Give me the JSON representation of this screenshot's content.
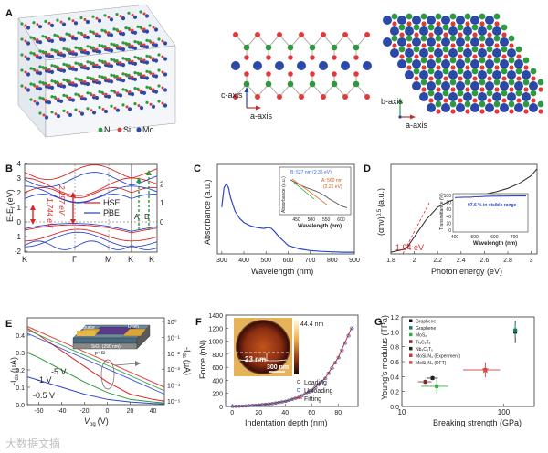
{
  "panels": {
    "a": {
      "label": "A",
      "legend": [
        "N",
        "Si",
        "Mo"
      ],
      "colors": {
        "N": "#2e9a3e",
        "Si": "#e03b3b",
        "Mo": "#2d49a7"
      },
      "axes": [
        {
          "primary": "c-axis",
          "secondary": "a-axis"
        },
        {
          "primary": "b-axis",
          "secondary": "a-axis"
        }
      ]
    },
    "b": {
      "label": "B",
      "ylabel": "E-E",
      "ylabel_sub": "f",
      "ylabel_unit": "(eV)",
      "yticks": [
        "4",
        "3",
        "2",
        "1",
        "0",
        "-1",
        "-2"
      ],
      "yticks_right": [
        "2",
        "1",
        "0"
      ],
      "xticks": [
        "K",
        "Γ",
        "M",
        "K",
        "K"
      ],
      "legend": [
        {
          "name": "HSE",
          "color": "#d92626"
        },
        {
          "name": "PBE",
          "color": "#2b47c9"
        }
      ],
      "gaps": [
        "1.744 eV",
        "2.297 eV"
      ],
      "ab": [
        "A",
        "B"
      ]
    },
    "c": {
      "label": "C",
      "ylabel": "Absorbance (a.u.)",
      "xlabel": "Wavelength (nm)",
      "xticks": [
        "300",
        "400",
        "500",
        "600",
        "700",
        "800",
        "900"
      ],
      "inset": {
        "ylabel": "Absorbance (a.u.)",
        "xlabel": "Wavelength (nm)",
        "xticks": [
          "450",
          "500",
          "550",
          "600"
        ],
        "note_b": "B: 527 nm (2.35 eV)",
        "note_a1": "A: 560 nm",
        "note_a2": "(2.21 eV)"
      }
    },
    "d": {
      "label": "D",
      "ylabel": "(αhν)",
      "ylabel_exp": "0.5",
      "ylabel_unit": "(a.u.)",
      "xlabel": "Photon energy (eV)",
      "xticks": [
        "1.8",
        "2",
        "2.2",
        "2.4",
        "2.6",
        "2.8",
        "3"
      ],
      "gap": "1.94 eV",
      "inset": {
        "ylabel": "Transmittance (%)",
        "xlabel": "Wavelength (nm)",
        "yticks": [
          "100",
          "80",
          "60",
          "40",
          "20",
          "0"
        ],
        "xticks": [
          "400",
          "500",
          "600",
          "700"
        ],
        "note": "97.6 % in visible range"
      }
    },
    "e": {
      "label": "E",
      "ylabel_left": "-I",
      "ylabel_left_sub": "ds",
      "ylabel_left_unit": "(μA)",
      "ylabel_right": "-I",
      "ylabel_right_sub": "ds",
      "ylabel_right_unit": "(μA)",
      "xlabel": "V",
      "xlabel_sub": "bg",
      "xlabel_unit": "(V)",
      "yticks_left": [
        "0.4",
        "0.3",
        "0.2",
        "0.1",
        "0.0"
      ],
      "yticks_right": [
        "10⁰",
        "10⁻¹",
        "10⁻²",
        "10⁻³",
        "10⁻⁴",
        "10⁻⁵"
      ],
      "xticks": [
        "-60",
        "-40",
        "-20",
        "0",
        "20",
        "40"
      ],
      "curve_labels": [
        "-5 V",
        "-1 V",
        "-0.5 V"
      ],
      "device": {
        "source": "Source",
        "drain": "Drain",
        "layer1": "SiO₂ (290 nm)",
        "layer2": "p⁺ Si"
      }
    },
    "f": {
      "label": "F",
      "ylabel": "Force (nN)",
      "xlabel": "Indentation depth (nm)",
      "yticks": [
        "1400",
        "1200",
        "1000",
        "800",
        "600",
        "400",
        "200",
        "0"
      ],
      "xticks": [
        "0",
        "20",
        "40",
        "60",
        "80"
      ],
      "legend": [
        "Loading",
        "Unloading",
        "Fitting"
      ],
      "inset": {
        "height": "44.4 nm",
        "thickness": "23 nm",
        "scale": "300 nm"
      }
    },
    "g": {
      "label": "G",
      "ylabel": "Young's modulus (TPa)",
      "xlabel": "Breaking strength (GPa)",
      "yticks": [
        "1.2",
        "1.0",
        "0.8",
        "0.6",
        "0.4",
        "0.2",
        "0.0"
      ],
      "xticks": [
        "10",
        "100"
      ],
      "legend": [
        {
          "name": "Graphene",
          "color": "#111111"
        },
        {
          "name": "Graphene",
          "color": "#1c7a5c"
        },
        {
          "name": "MoS₂",
          "color": "#3aa84a"
        },
        {
          "name": "Ti₃C₂Tₓ",
          "color": "#7a2a2a"
        },
        {
          "name": "Nb₄C₃Tₓ",
          "color": "#222222"
        },
        {
          "name": "MoSi₂N₄ (Experiment)",
          "color": "#c03a3a"
        },
        {
          "name": "MoSi₂N₄ (DFT)",
          "color": "#d9534f"
        }
      ]
    }
  },
  "watermark": "大数据文摘",
  "chart_data": [
    {
      "type": "line",
      "title": "C",
      "xlabel": "Wavelength (nm)",
      "ylabel": "Absorbance (a.u.)",
      "xlim": [
        280,
        900
      ],
      "ylim": [
        0,
        1
      ],
      "series": [
        {
          "name": "absorbance",
          "x": [
            300,
            310,
            320,
            330,
            340,
            360,
            380,
            400,
            430,
            460,
            490,
            510,
            525,
            540,
            560,
            580,
            600,
            650,
            700,
            750,
            800,
            850,
            900
          ],
          "y": [
            0.55,
            0.78,
            0.82,
            0.78,
            0.66,
            0.5,
            0.42,
            0.37,
            0.33,
            0.31,
            0.3,
            0.31,
            0.3,
            0.26,
            0.2,
            0.15,
            0.1,
            0.06,
            0.04,
            0.03,
            0.025,
            0.02,
            0.02
          ]
        }
      ]
    },
    {
      "type": "line",
      "title": "D",
      "xlabel": "Photon energy (eV)",
      "ylabel": "(αhν)^0.5 (a.u.)",
      "xlim": [
        1.8,
        3.05
      ],
      "ylim": [
        0,
        1
      ],
      "series": [
        {
          "name": "tauc",
          "x": [
            1.8,
            1.9,
            1.94,
            2.0,
            2.1,
            2.2,
            2.3,
            2.4,
            2.5,
            2.6,
            2.7,
            2.8,
            2.9,
            3.0,
            3.05
          ],
          "y": [
            0.02,
            0.05,
            0.08,
            0.2,
            0.4,
            0.55,
            0.62,
            0.66,
            0.68,
            0.7,
            0.73,
            0.77,
            0.83,
            0.92,
            1.0
          ]
        }
      ]
    },
    {
      "type": "line",
      "title": "D inset",
      "xlabel": "Wavelength (nm)",
      "ylabel": "Transmittance (%)",
      "xlim": [
        400,
        760
      ],
      "ylim": [
        0,
        100
      ],
      "series": [
        {
          "name": "transmittance",
          "x": [
            400,
            450,
            480,
            500,
            530,
            560,
            600,
            700,
            760
          ],
          "y": [
            94,
            95,
            95,
            96,
            96.5,
            97.5,
            98,
            98.5,
            98.5
          ]
        }
      ]
    },
    {
      "type": "line",
      "title": "E",
      "xlabel": "Vbg (V)",
      "ylabel": "-Ids (μA)",
      "xlim": [
        -70,
        50
      ],
      "ylim": [
        0,
        0.5
      ],
      "series": [
        {
          "name": "-5 V",
          "x": [
            -70,
            -60,
            -40,
            -20,
            0,
            20,
            40,
            50
          ],
          "y": [
            0.44,
            0.4,
            0.31,
            0.22,
            0.13,
            0.06,
            0.03,
            0.02
          ]
        },
        {
          "name": "-1 V",
          "x": [
            -70,
            -60,
            -40,
            -20,
            0,
            20,
            40,
            50
          ],
          "y": [
            0.3,
            0.27,
            0.2,
            0.13,
            0.07,
            0.03,
            0.015,
            0.01
          ]
        },
        {
          "name": "-0.5 V",
          "x": [
            -70,
            -60,
            -40,
            -20,
            0,
            20,
            40,
            50
          ],
          "y": [
            0.16,
            0.14,
            0.1,
            0.06,
            0.03,
            0.015,
            0.007,
            0.005
          ]
        }
      ]
    },
    {
      "type": "line",
      "title": "F",
      "xlabel": "Indentation depth (nm)",
      "ylabel": "Force (nN)",
      "xlim": [
        -5,
        95
      ],
      "ylim": [
        0,
        1400
      ],
      "series": [
        {
          "name": "Loading",
          "x": [
            0,
            10,
            20,
            30,
            40,
            50,
            60,
            70,
            80,
            90
          ],
          "y": [
            0,
            10,
            25,
            45,
            80,
            140,
            250,
            430,
            750,
            1200
          ]
        },
        {
          "name": "Unloading",
          "x": [
            0,
            10,
            20,
            30,
            40,
            50,
            60,
            70,
            80,
            90
          ],
          "y": [
            0,
            8,
            22,
            42,
            78,
            138,
            245,
            425,
            745,
            1190
          ]
        },
        {
          "name": "Fitting",
          "x": [
            0,
            10,
            20,
            30,
            40,
            50,
            60,
            70,
            80,
            90
          ],
          "y": [
            0,
            9,
            23,
            44,
            79,
            139,
            248,
            428,
            748,
            1200
          ]
        }
      ]
    },
    {
      "type": "scatter",
      "title": "G",
      "xlabel": "Breaking strength (GPa)",
      "ylabel": "Young's modulus (TPa)",
      "xscale": "log",
      "xlim": [
        10,
        200
      ],
      "ylim": [
        0,
        1.2
      ],
      "points": [
        {
          "name": "Graphene",
          "x": 130,
          "y": 1.0
        },
        {
          "name": "Graphene",
          "x": 130,
          "y": 1.02
        },
        {
          "name": "MoS₂",
          "x": 22,
          "y": 0.27
        },
        {
          "name": "Ti₃C₂Tₓ",
          "x": 17,
          "y": 0.33
        },
        {
          "name": "Nb₄C₃Tₓ",
          "x": 20,
          "y": 0.38
        },
        {
          "name": "MoSi₂N₄ (Experiment)",
          "x": 66,
          "y": 0.49
        },
        {
          "name": "MoSi₂N₄ (DFT)",
          "x": 66,
          "y": 0.49
        }
      ]
    }
  ]
}
